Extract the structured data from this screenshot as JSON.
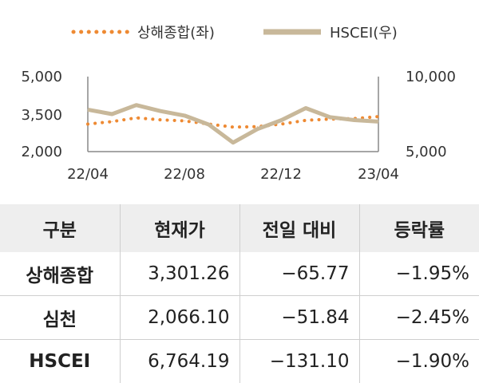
{
  "chart_data": {
    "type": "line",
    "legend": [
      {
        "label": "상해종합(좌)",
        "color": "#ee8a33",
        "style": "dotted"
      },
      {
        "label": "HSCEI(우)",
        "color": "#c8b89a",
        "style": "solid"
      }
    ],
    "legend_position": "top",
    "x_ticks": [
      "22/04",
      "22/08",
      "22/12",
      "23/04"
    ],
    "y_left": {
      "ticks": [
        "5,000",
        "3,500",
        "2,000"
      ],
      "range": [
        2000,
        5000
      ]
    },
    "y_right": {
      "ticks": [
        "10,000",
        "5,000"
      ],
      "range": [
        5000,
        10000
      ]
    },
    "grid": false,
    "series": [
      {
        "name": "상해종합(좌)",
        "axis": "left",
        "x": [
          "22/04",
          "22/05",
          "22/06",
          "22/07",
          "22/08",
          "22/09",
          "22/10",
          "22/11",
          "22/12",
          "23/01",
          "23/02",
          "23/03",
          "23/04"
        ],
        "values": [
          3100,
          3200,
          3350,
          3270,
          3230,
          3100,
          2980,
          3000,
          3100,
          3250,
          3300,
          3320,
          3400
        ]
      },
      {
        "name": "HSCEI(우)",
        "axis": "right",
        "x": [
          "22/04",
          "22/05",
          "22/06",
          "22/07",
          "22/08",
          "22/09",
          "22/10",
          "22/11",
          "22/12",
          "23/01",
          "23/02",
          "23/03",
          "23/04"
        ],
        "values": [
          7800,
          7500,
          8100,
          7700,
          7400,
          6800,
          5600,
          6500,
          7100,
          7900,
          7300,
          7100,
          7000
        ]
      }
    ]
  },
  "table": {
    "headers": [
      "구분",
      "현재가",
      "전일 대비",
      "등락률"
    ],
    "rows": [
      [
        "상해종합",
        "3,301.26",
        "-65.77",
        "-1.95%"
      ],
      [
        "심천",
        "2,066.10",
        "-51.84",
        "-2.45%"
      ],
      [
        "HSCEI",
        "6,764.19",
        "-131.10",
        "-1.90%"
      ]
    ]
  }
}
